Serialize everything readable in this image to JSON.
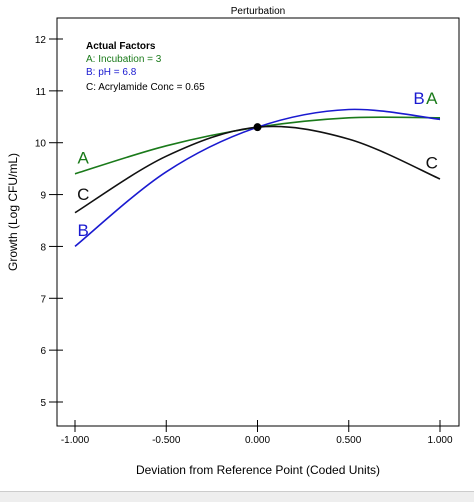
{
  "chart_data": {
    "type": "line",
    "title": "Perturbation",
    "xlabel": "Deviation from Reference Point (Coded Units)",
    "ylabel": "Growth (Log CFU/mL)",
    "xlim": [
      -1.0,
      1.0
    ],
    "ylim": [
      4.7,
      12.4
    ],
    "xticks": [
      -1.0,
      -0.5,
      0.0,
      0.5,
      1.0
    ],
    "xtick_labels": [
      "-1.000",
      "-0.500",
      "0.000",
      "0.500",
      "1.000"
    ],
    "yticks": [
      5,
      6,
      7,
      8,
      9,
      10,
      11,
      12
    ],
    "ytick_labels": [
      "5",
      "6",
      "7",
      "8",
      "9",
      "10",
      "11",
      "12"
    ],
    "grid": false,
    "legend": {
      "heading": "Actual Factors",
      "placement": "top-left",
      "entries": [
        {
          "text": "A: Incubation = 3",
          "color": "#1a7a1a"
        },
        {
          "text": "B: pH = 6.8",
          "color": "#1a1ad0"
        },
        {
          "text": "C: Acrylamide Conc = 0.65",
          "color": "#222222"
        }
      ]
    },
    "reference_point": {
      "x": 0.0,
      "y": 10.3
    },
    "series": [
      {
        "name": "A",
        "color": "#1a7a1a",
        "x": [
          -1.0,
          -0.5,
          0.0,
          0.5,
          1.0
        ],
        "y": [
          9.4,
          9.94,
          10.3,
          10.48,
          10.48
        ]
      },
      {
        "name": "B",
        "color": "#1a1ad0",
        "x": [
          -1.0,
          -0.5,
          0.0,
          0.5,
          1.0
        ],
        "y": [
          8.0,
          9.44,
          10.3,
          10.64,
          10.45
        ]
      },
      {
        "name": "C",
        "color": "#111111",
        "x": [
          -1.0,
          -0.5,
          0.0,
          0.5,
          1.0
        ],
        "y": [
          8.65,
          9.74,
          10.3,
          10.07,
          9.3
        ]
      }
    ],
    "curve_labels": [
      {
        "text": "A",
        "color": "#1a7a1a",
        "x": -0.955,
        "y": 9.6,
        "anchor": "middle"
      },
      {
        "text": "C",
        "color": "#111111",
        "x": -0.955,
        "y": 8.9,
        "anchor": "middle"
      },
      {
        "text": "B",
        "color": "#1a1ad0",
        "x": -0.955,
        "y": 8.2,
        "anchor": "middle"
      },
      {
        "text": "B",
        "color": "#1a1ad0",
        "x": 0.885,
        "y": 10.75,
        "anchor": "middle"
      },
      {
        "text": "A",
        "color": "#1a7a1a",
        "x": 0.955,
        "y": 10.75,
        "anchor": "middle"
      },
      {
        "text": "C",
        "color": "#111111",
        "x": 0.955,
        "y": 9.5,
        "anchor": "middle"
      }
    ]
  }
}
